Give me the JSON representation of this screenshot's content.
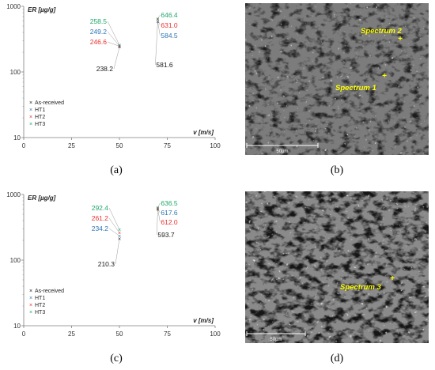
{
  "panels": [
    {
      "label": "(a)"
    },
    {
      "label": "(b)"
    },
    {
      "label": "(c)"
    },
    {
      "label": "(d)"
    }
  ],
  "chart_data": [
    {
      "type": "scatter",
      "title": "",
      "ylabel": "ER [µg/g]",
      "xlabel": "v [m/s]",
      "xlim": [
        0,
        100
      ],
      "ylim": [
        10,
        1000
      ],
      "y_scale": "log",
      "x_ticks": [
        "0",
        "25",
        "50",
        "75",
        "100"
      ],
      "y_ticks": [
        "10",
        "100",
        "1000"
      ],
      "grid": false,
      "legend_position": "bottom-left",
      "series": [
        {
          "name": "As-received",
          "color": "#1a1a1a",
          "marker": "×",
          "x": [
            50,
            70
          ],
          "y": [
            238.2,
            581.6
          ]
        },
        {
          "name": "HT1",
          "color": "#2e75b6",
          "marker": "×",
          "x": [
            50,
            70
          ],
          "y": [
            249.2,
            584.5
          ]
        },
        {
          "name": "HT2",
          "color": "#e8312e",
          "marker": "×",
          "x": [
            50,
            70
          ],
          "y": [
            246.6,
            631.0
          ]
        },
        {
          "name": "HT3",
          "color": "#1ea86b",
          "marker": "×",
          "x": [
            50,
            70
          ],
          "y": [
            258.5,
            646.4
          ]
        }
      ],
      "annotations": [
        {
          "text": "258.5",
          "series": "HT3",
          "group": 0,
          "color": "#1ea86b"
        },
        {
          "text": "249.2",
          "series": "HT1",
          "group": 0,
          "color": "#2e75b6"
        },
        {
          "text": "246.6",
          "series": "HT2",
          "group": 0,
          "color": "#e8312e"
        },
        {
          "text": "238.2",
          "series": "As-received",
          "group": 0,
          "color": "#1a1a1a"
        },
        {
          "text": "646.4",
          "series": "HT3",
          "group": 1,
          "color": "#1ea86b"
        },
        {
          "text": "631.0",
          "series": "HT2",
          "group": 1,
          "color": "#e8312e"
        },
        {
          "text": "584.5",
          "series": "HT1",
          "group": 1,
          "color": "#2e75b6"
        },
        {
          "text": "581.6",
          "series": "As-received",
          "group": 1,
          "color": "#1a1a1a"
        }
      ]
    },
    {
      "type": "scatter",
      "title": "",
      "ylabel": "ER [µg/g]",
      "xlabel": "v [m/s]",
      "xlim": [
        0,
        100
      ],
      "ylim": [
        10,
        1000
      ],
      "y_scale": "log",
      "x_ticks": [
        "0",
        "25",
        "50",
        "75",
        "100"
      ],
      "y_ticks": [
        "10",
        "100",
        "1000"
      ],
      "grid": false,
      "legend_position": "bottom-left",
      "series": [
        {
          "name": "As-received",
          "color": "#1a1a1a",
          "marker": "×",
          "x": [
            50,
            70
          ],
          "y": [
            210.3,
            593.7
          ]
        },
        {
          "name": "HT1",
          "color": "#2e75b6",
          "marker": "×",
          "x": [
            50,
            70
          ],
          "y": [
            234.2,
            617.6
          ]
        },
        {
          "name": "HT2",
          "color": "#e8312e",
          "marker": "×",
          "x": [
            50,
            70
          ],
          "y": [
            261.2,
            612.0
          ]
        },
        {
          "name": "HT3",
          "color": "#1ea86b",
          "marker": "×",
          "x": [
            50,
            70
          ],
          "y": [
            292.4,
            636.5
          ]
        }
      ],
      "annotations": [
        {
          "text": "292.4",
          "series": "HT3",
          "group": 0,
          "color": "#1ea86b"
        },
        {
          "text": "261.2",
          "series": "HT2",
          "group": 0,
          "color": "#e8312e"
        },
        {
          "text": "234.2",
          "series": "HT1",
          "group": 0,
          "color": "#2e75b6"
        },
        {
          "text": "210.3",
          "series": "As-received",
          "group": 0,
          "color": "#1a1a1a"
        },
        {
          "text": "636.5",
          "series": "HT3",
          "group": 1,
          "color": "#1ea86b"
        },
        {
          "text": "617.6",
          "series": "HT1",
          "group": 1,
          "color": "#2e75b6"
        },
        {
          "text": "612.0",
          "series": "HT2",
          "group": 1,
          "color": "#e8312e"
        },
        {
          "text": "593.7",
          "series": "As-received",
          "group": 1,
          "color": "#1a1a1a"
        }
      ]
    }
  ],
  "micrographs": [
    {
      "scale_bar_label": "50µm",
      "marker_color": "#ffff00",
      "spectra": [
        {
          "label": "Spectrum 2"
        },
        {
          "label": "Spectrum 1"
        }
      ]
    },
    {
      "scale_bar_label": "50µm",
      "marker_color": "#ffff00",
      "spectra": [
        {
          "label": "Spectrum 3"
        }
      ]
    }
  ]
}
